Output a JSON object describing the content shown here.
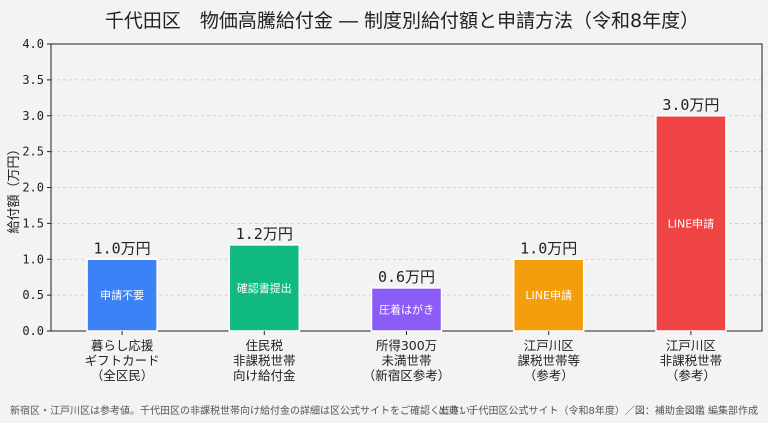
{
  "chart_data": {
    "type": "bar",
    "title": "千代田区　物価高騰給付金 ― 制度別給付額と申請方法（令和8年度）",
    "xlabel": "",
    "ylabel": "給付額（万円）",
    "ylim": [
      0,
      4
    ],
    "yticks": [
      "0.0",
      "0.5",
      "1.0",
      "1.5",
      "2.0",
      "2.5",
      "3.0",
      "3.5",
      "4.0"
    ],
    "grid": true,
    "legend": "none",
    "categories": [
      [
        "暮らし応援",
        "ギフトカード",
        "（全区民）"
      ],
      [
        "住民税",
        "非課税世帯",
        "向け給付金"
      ],
      [
        "所得300万",
        "未満世帯",
        "（新宿区参考）"
      ],
      [
        "江戸川区",
        "課税世帯等",
        "（参考）"
      ],
      [
        "江戸川区",
        "非課税世帯",
        "（参考）"
      ]
    ],
    "values": [
      1.0,
      1.2,
      0.6,
      1.0,
      3.0
    ],
    "value_labels": [
      "1.0万円",
      "1.2万円",
      "0.6万円",
      "1.0万円",
      "3.0万円"
    ],
    "bar_texts": [
      "申請不要",
      "確認書提出",
      "圧着はがき",
      "LINE申請",
      "LINE申請"
    ],
    "colors": [
      "#3b82f6",
      "#10b981",
      "#8b5cf6",
      "#f59e0b",
      "#ef4444"
    ]
  },
  "footnote_left": "新宿区・江戸川区は参考値。千代田区の非課税世帯向け給付金の詳細は区公式サイトをご確認ください。",
  "footnote_right": "出典：千代田区公式サイト（令和8年度）／図：補助金図鑑 編集部作成"
}
